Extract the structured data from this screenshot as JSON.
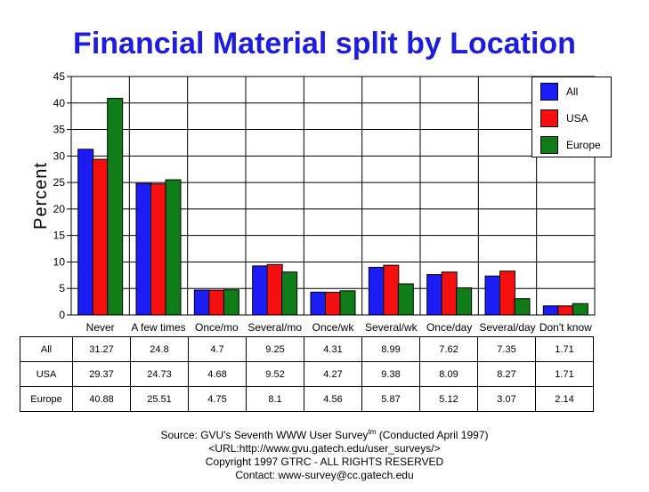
{
  "chart_data": {
    "type": "bar",
    "title": "Financial Material split by Location",
    "ylabel": "Percent",
    "xlabel": "",
    "ylim": [
      0,
      45
    ],
    "yticks": [
      0,
      5,
      10,
      15,
      20,
      25,
      30,
      35,
      40,
      45
    ],
    "grid": true,
    "legend_position": "top-right",
    "categories": [
      "Never",
      "A few times",
      "Once/mo",
      "Several/mo",
      "Once/wk",
      "Several/wk",
      "Once/day",
      "Several/day",
      "Don't know"
    ],
    "series": [
      {
        "name": "All",
        "color": "#1c1cf5",
        "values": [
          31.27,
          24.8,
          4.7,
          9.25,
          4.31,
          8.99,
          7.62,
          7.35,
          1.71
        ]
      },
      {
        "name": "USA",
        "color": "#f50f0f",
        "values": [
          29.37,
          24.73,
          4.68,
          9.52,
          4.27,
          9.38,
          8.09,
          8.27,
          1.71
        ]
      },
      {
        "name": "Europe",
        "color": "#0f7d17",
        "values": [
          40.88,
          25.51,
          4.75,
          8.1,
          4.56,
          5.87,
          5.12,
          3.07,
          2.14
        ]
      }
    ],
    "table": {
      "rows": [
        {
          "label": "All",
          "values": [
            "31.27",
            "24.8",
            "4.7",
            "9.25",
            "4.31",
            "8.99",
            "7.62",
            "7.35",
            "1.71"
          ]
        },
        {
          "label": "USA",
          "values": [
            "29.37",
            "24.73",
            "4.68",
            "9.52",
            "4.27",
            "9.38",
            "8.09",
            "8.27",
            "1.71"
          ]
        },
        {
          "label": "Europe",
          "values": [
            "40.88",
            "25.51",
            "4.75",
            "8.1",
            "4.56",
            "5.87",
            "5.12",
            "3.07",
            "2.14"
          ]
        }
      ]
    }
  },
  "source": {
    "line1_prefix": "Source: GVU's Seventh WWW User Survey",
    "line1_sup": "tm",
    "line1_suffix": " (Conducted April 1997)",
    "line2": "<URL:http://www.gvu.gatech.edu/user_surveys/>",
    "line3": "Copyright 1997 GTRC - ALL RIGHTS RESERVED",
    "line4": "Contact: www-survey@cc.gatech.edu"
  }
}
